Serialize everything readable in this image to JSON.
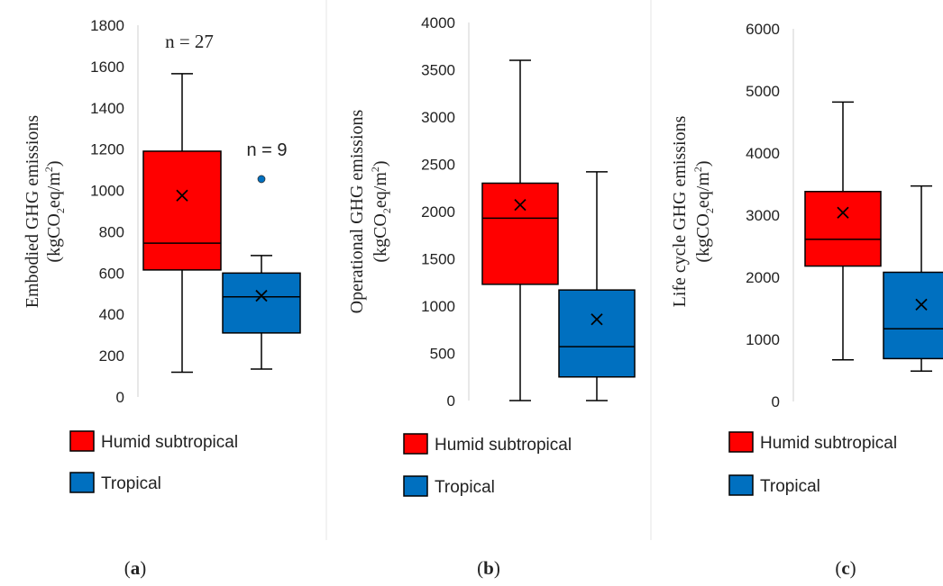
{
  "chart_data": [
    {
      "type": "box",
      "panel": "a",
      "caption_letter": "a",
      "ylabel_line1": "Embodied GHG emissions",
      "ylabel_line2": {
        "pre": "(kgCO",
        "sub": "2",
        "mid": "eq/m",
        "sup": "2",
        "post": ")"
      },
      "ylim": [
        0,
        1800
      ],
      "yticks": [
        0,
        200,
        400,
        600,
        800,
        1000,
        1200,
        1400,
        1600,
        1800
      ],
      "series": [
        {
          "name": "Humid subtropical",
          "color": "#ff0000",
          "min": 120,
          "q1": 615,
          "median": 745,
          "q3": 1190,
          "max": 1565,
          "mean": 975,
          "outliers": [],
          "annotation": "n = 27"
        },
        {
          "name": "Tropical",
          "color": "#0070c0",
          "min": 135,
          "q1": 310,
          "median": 485,
          "q3": 600,
          "max": 685,
          "mean": 490,
          "outliers": [
            1055
          ],
          "annotation": "n = 9"
        }
      ]
    },
    {
      "type": "box",
      "panel": "b",
      "caption_letter": "b",
      "ylabel_line1": "Operational GHG emissions",
      "ylabel_line2": {
        "pre": "(kgCO",
        "sub": "2",
        "mid": "eq/m",
        "sup": "2",
        "post": ")"
      },
      "ylim": [
        0,
        4000
      ],
      "yticks": [
        0,
        500,
        1000,
        1500,
        2000,
        2500,
        3000,
        3500,
        4000
      ],
      "series": [
        {
          "name": "Humid subtropical",
          "color": "#ff0000",
          "min": 0,
          "q1": 1230,
          "median": 1930,
          "q3": 2300,
          "max": 3600,
          "mean": 2070,
          "outliers": []
        },
        {
          "name": "Tropical",
          "color": "#0070c0",
          "min": 0,
          "q1": 250,
          "median": 570,
          "q3": 1170,
          "max": 2420,
          "mean": 860,
          "outliers": []
        }
      ]
    },
    {
      "type": "box",
      "panel": "c",
      "caption_letter": "c",
      "ylabel_line1": "Life cycle GHG emissions",
      "ylabel_line2": {
        "pre": "(kgCO",
        "sub": "2",
        "mid": "eq/m",
        "sup": "2",
        "post": ")"
      },
      "ylim": [
        0,
        6000
      ],
      "yticks": [
        0,
        1000,
        2000,
        3000,
        4000,
        5000,
        6000
      ],
      "series": [
        {
          "name": "Humid subtropical",
          "color": "#ff0000",
          "min": 670,
          "q1": 2180,
          "median": 2610,
          "q3": 3380,
          "max": 4820,
          "mean": 3040,
          "outliers": []
        },
        {
          "name": "Tropical",
          "color": "#0070c0",
          "min": 490,
          "q1": 690,
          "median": 1170,
          "q3": 2080,
          "max": 3470,
          "mean": 1560,
          "outliers": []
        }
      ]
    }
  ],
  "legend": [
    {
      "label": "Humid subtropical",
      "color": "#ff0000"
    },
    {
      "label": "Tropical",
      "color": "#0070c0"
    }
  ]
}
